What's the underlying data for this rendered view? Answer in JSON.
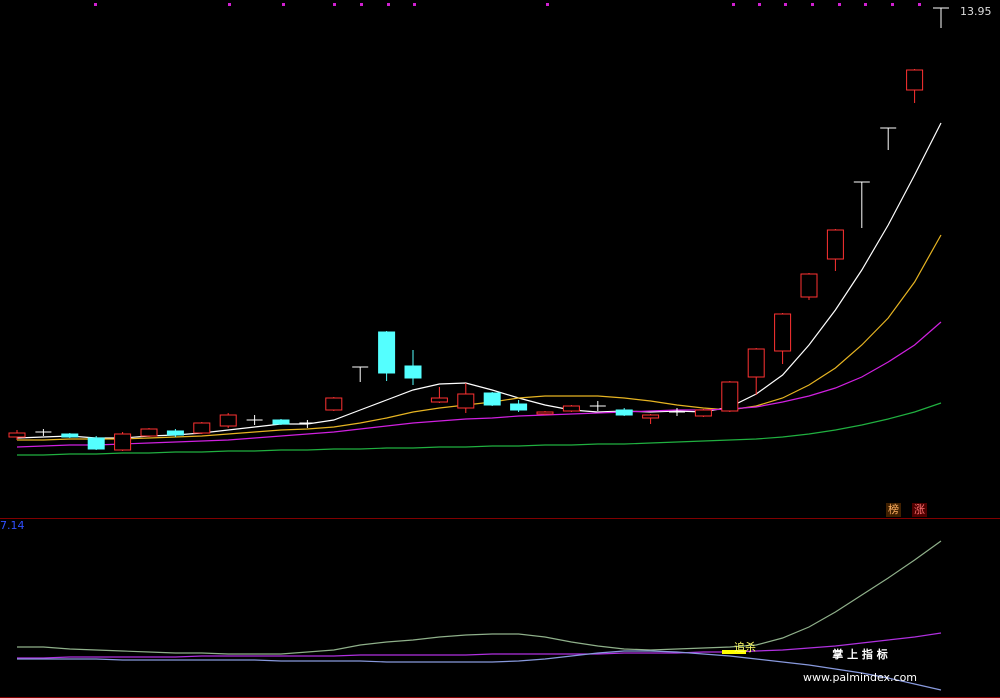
{
  "chart_data": {
    "type": "candlestick",
    "ylim": [
      3.75,
      13.95
    ],
    "candles": {
      "open": [
        5.37,
        5.47,
        5.43,
        5.35,
        5.11,
        5.39,
        5.49,
        5.45,
        5.59,
        5.71,
        5.71,
        5.65,
        5.91,
        6.77,
        7.47,
        6.79,
        6.07,
        5.95,
        6.25,
        6.03,
        5.83,
        5.89,
        5.99,
        5.91,
        5.75,
        5.87,
        5.79,
        5.89,
        6.57,
        7.09,
        8.17,
        8.93,
        10.47,
        11.55,
        12.31,
        13.95
      ],
      "close": [
        5.45,
        5.47,
        5.37,
        5.13,
        5.43,
        5.53,
        5.41,
        5.65,
        5.81,
        5.71,
        5.63,
        5.65,
        6.15,
        6.77,
        6.65,
        6.55,
        6.15,
        6.23,
        6.01,
        5.91,
        5.87,
        5.99,
        5.99,
        5.81,
        5.81,
        5.87,
        5.91,
        6.47,
        7.13,
        7.83,
        8.63,
        9.51,
        10.47,
        11.55,
        12.71,
        13.95
      ],
      "high": [
        5.51,
        5.53,
        5.45,
        5.39,
        5.47,
        5.55,
        5.53,
        5.67,
        5.85,
        5.81,
        5.73,
        5.71,
        6.17,
        6.77,
        7.49,
        7.11,
        6.37,
        6.45,
        6.27,
        6.11,
        5.89,
        6.01,
        6.09,
        5.95,
        5.83,
        5.95,
        5.93,
        6.49,
        7.15,
        7.85,
        8.65,
        9.53,
        10.47,
        11.55,
        12.73,
        13.95
      ],
      "low": [
        5.31,
        5.39,
        5.35,
        5.11,
        5.09,
        5.37,
        5.37,
        5.43,
        5.55,
        5.61,
        5.61,
        5.55,
        5.89,
        6.47,
        6.49,
        6.41,
        6.05,
        5.85,
        5.99,
        5.87,
        5.81,
        5.87,
        5.89,
        5.79,
        5.63,
        5.79,
        5.77,
        5.87,
        6.21,
        6.83,
        8.11,
        8.69,
        9.55,
        11.11,
        12.05,
        13.55
      ]
    },
    "up_color": "#ff3232",
    "down_color": "#54ffff",
    "flat_color": "#ffffff",
    "lines": [
      {
        "color": "#ffffff",
        "values": [
          5.35,
          5.37,
          5.39,
          5.35,
          5.35,
          5.39,
          5.41,
          5.45,
          5.51,
          5.57,
          5.63,
          5.63,
          5.71,
          5.91,
          6.11,
          6.31,
          6.43,
          6.45,
          6.31,
          6.15,
          6.01,
          5.91,
          5.87,
          5.89,
          5.87,
          5.89,
          5.87,
          5.97,
          6.23,
          6.61,
          7.21,
          7.91,
          8.71,
          9.61,
          10.61,
          11.65
        ]
      },
      {
        "color": "#e6b422",
        "values": [
          5.31,
          5.31,
          5.33,
          5.33,
          5.33,
          5.35,
          5.37,
          5.39,
          5.43,
          5.47,
          5.51,
          5.53,
          5.57,
          5.65,
          5.75,
          5.87,
          5.95,
          6.01,
          6.07,
          6.15,
          6.19,
          6.19,
          6.19,
          6.15,
          6.09,
          6.01,
          5.95,
          5.91,
          5.99,
          6.15,
          6.41,
          6.75,
          7.21,
          7.75,
          8.47,
          9.41
        ]
      },
      {
        "color": "#d020e0",
        "values": [
          5.17,
          5.19,
          5.21,
          5.21,
          5.23,
          5.25,
          5.27,
          5.29,
          5.31,
          5.35,
          5.39,
          5.43,
          5.47,
          5.53,
          5.59,
          5.65,
          5.69,
          5.73,
          5.75,
          5.79,
          5.81,
          5.83,
          5.85,
          5.87,
          5.89,
          5.91,
          5.91,
          5.93,
          5.97,
          6.07,
          6.19,
          6.35,
          6.57,
          6.87,
          7.21,
          7.67
        ]
      },
      {
        "color": "#20b040",
        "values": [
          5.01,
          5.01,
          5.03,
          5.03,
          5.05,
          5.05,
          5.07,
          5.07,
          5.09,
          5.09,
          5.11,
          5.11,
          5.13,
          5.13,
          5.15,
          5.15,
          5.17,
          5.17,
          5.19,
          5.19,
          5.21,
          5.21,
          5.23,
          5.23,
          5.25,
          5.27,
          5.29,
          5.31,
          5.33,
          5.37,
          5.43,
          5.51,
          5.61,
          5.73,
          5.87,
          6.05
        ]
      }
    ],
    "badges": [
      "榜",
      "涨"
    ]
  },
  "indicator": {
    "type": "line",
    "ylim": [
      -1.76,
      7.14
    ],
    "series": [
      {
        "color": "#8fb08a",
        "values": [
          0.79,
          0.79,
          0.69,
          0.64,
          0.59,
          0.54,
          0.49,
          0.49,
          0.44,
          0.44,
          0.44,
          0.54,
          0.64,
          0.89,
          1.04,
          1.14,
          1.29,
          1.39,
          1.44,
          1.44,
          1.29,
          1.04,
          0.84,
          0.69,
          0.64,
          0.69,
          0.74,
          0.79,
          0.89,
          1.24,
          1.79,
          2.54,
          3.39,
          4.24,
          5.14,
          6.09
        ]
      },
      {
        "color": "#b030e0",
        "values": [
          0.24,
          0.24,
          0.29,
          0.29,
          0.29,
          0.29,
          0.29,
          0.34,
          0.34,
          0.34,
          0.34,
          0.34,
          0.34,
          0.39,
          0.39,
          0.39,
          0.39,
          0.39,
          0.44,
          0.44,
          0.44,
          0.44,
          0.44,
          0.49,
          0.49,
          0.49,
          0.54,
          0.54,
          0.59,
          0.64,
          0.74,
          0.84,
          0.99,
          1.14,
          1.29,
          1.49
        ]
      },
      {
        "color": "#8899dd",
        "values": [
          0.19,
          0.19,
          0.19,
          0.19,
          0.14,
          0.14,
          0.14,
          0.14,
          0.14,
          0.14,
          0.09,
          0.09,
          0.09,
          0.09,
          0.04,
          0.04,
          0.04,
          0.04,
          0.04,
          0.09,
          0.19,
          0.34,
          0.49,
          0.59,
          0.59,
          0.54,
          0.44,
          0.34,
          0.19,
          0.04,
          -0.11,
          -0.31,
          -0.51,
          -0.76,
          -1.06,
          -1.36
        ]
      }
    ],
    "signal_label": "追杀"
  },
  "watermark": {
    "title": "掌 上 指 标",
    "url": "www.palmindex.com"
  }
}
